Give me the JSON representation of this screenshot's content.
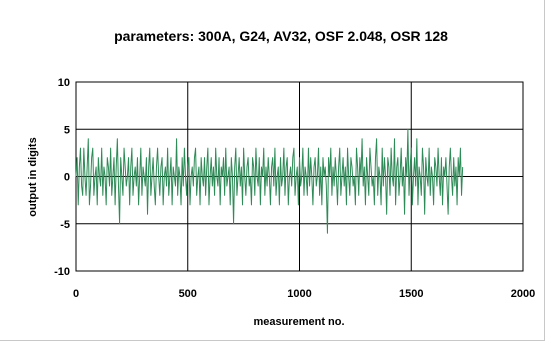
{
  "chart_data": {
    "type": "line",
    "title": "parameters: 300A, G24, AV32, OSF 2.048, OSR 128",
    "xlabel": "measurement no.",
    "ylabel": "output in digits",
    "xlim": [
      0,
      2000
    ],
    "ylim": [
      -10,
      10
    ],
    "x_ticks": [
      0,
      500,
      1000,
      1500,
      2000
    ],
    "y_ticks": [
      10,
      5,
      0,
      -5,
      -10
    ],
    "grid": true,
    "legend": "none",
    "series": [
      {
        "color": "#2e8b57",
        "x_start": 0,
        "x_step": 5,
        "values": [
          0,
          2,
          -3,
          1,
          3,
          -1,
          -2,
          3,
          0,
          -2,
          1,
          4,
          -3,
          -1,
          2,
          3,
          -2,
          0,
          1,
          -3,
          2,
          0,
          -1,
          3,
          -2,
          1,
          0,
          -3,
          2,
          1,
          -1,
          3,
          -2,
          0,
          2,
          -3,
          1,
          4,
          -1,
          -5,
          2,
          0,
          -2,
          3,
          1,
          -1,
          0,
          2,
          -3,
          1,
          3,
          -2,
          0,
          1,
          -1,
          2,
          -3,
          0,
          3,
          -2,
          1,
          0,
          -1,
          2,
          -4,
          1,
          3,
          -2,
          0,
          2,
          -1,
          -3,
          1,
          3,
          0,
          -2,
          1,
          2,
          -3,
          0,
          1,
          -1,
          3,
          -2,
          0,
          2,
          -3,
          1,
          0,
          -1,
          4,
          -2,
          1,
          0,
          -3,
          2,
          -1,
          3,
          0,
          -2,
          1,
          2,
          -3,
          0,
          1,
          -1,
          2,
          3,
          -2,
          0,
          1,
          -3,
          2,
          0,
          -1,
          2,
          -2,
          1,
          3,
          -3,
          0,
          2,
          -1,
          1,
          -2,
          3,
          0,
          -1,
          2,
          -3,
          1,
          0,
          2,
          -2,
          3,
          -1,
          0,
          1,
          -3,
          2,
          0,
          -5,
          1,
          3,
          -2,
          0,
          2,
          -1,
          1,
          -3,
          3,
          0,
          -2,
          1,
          2,
          -1,
          0,
          -3,
          2,
          1,
          -2,
          3,
          0,
          -1,
          2,
          -3,
          1,
          0,
          3,
          -2,
          1,
          -1,
          2,
          0,
          -3,
          1,
          2,
          -1,
          3,
          -2,
          0,
          1,
          -3,
          2,
          -1,
          0,
          3,
          -2,
          1,
          2,
          -3,
          0,
          1,
          -1,
          2,
          3,
          -2,
          0,
          1,
          -3,
          2,
          -1,
          0,
          3,
          -2,
          1,
          0,
          -2,
          3,
          -1,
          2,
          0,
          -3,
          1,
          2,
          -1,
          0,
          3,
          -2,
          1,
          -3,
          2,
          0,
          1,
          -1,
          -6,
          2,
          0,
          3,
          -2,
          1,
          -1,
          2,
          0,
          -3,
          1,
          3,
          -2,
          0,
          2,
          -1,
          1,
          -3,
          3,
          0,
          -2,
          2,
          1,
          -1,
          0,
          -3,
          3,
          1,
          -2,
          2,
          0,
          4,
          -1,
          1,
          -3,
          2,
          0,
          -2,
          3,
          1,
          -1,
          0,
          -3,
          2,
          4,
          -2,
          1,
          0,
          -3,
          3,
          -1,
          2,
          0,
          -4,
          2,
          1,
          -2,
          3,
          0,
          -1,
          4,
          -3,
          1,
          2,
          -2,
          0,
          3,
          -1,
          1,
          -4,
          2,
          0,
          5,
          -2,
          1,
          3,
          -3,
          0,
          2,
          -1,
          4,
          -3,
          1,
          0,
          -2,
          3,
          1,
          -4,
          2,
          0,
          -1,
          3,
          -2,
          1,
          0,
          -3,
          2,
          1,
          -1,
          3,
          0,
          -2,
          2,
          -3,
          1,
          0,
          2,
          -1,
          -4,
          1,
          3,
          0,
          -2,
          2,
          -1,
          1,
          -3,
          2,
          0,
          3,
          -2,
          1
        ]
      }
    ]
  }
}
